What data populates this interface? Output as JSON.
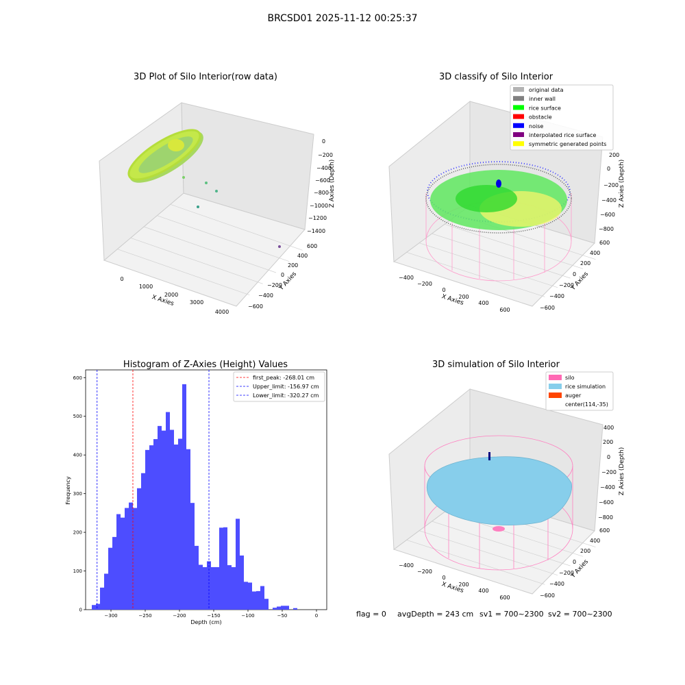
{
  "figure": {
    "suptitle": "BRCSD01 2025-11-12 00:25:37",
    "footer": {
      "flag": "flag = 0",
      "avg_depth": "avgDepth = 243 cm",
      "sv1": "sv1 = 700~2300",
      "sv2": "sv2 = 700~2300"
    }
  },
  "colors": {
    "hist_bar": "#4d4dff",
    "first_peak": "#ff0000",
    "limits": "#0000ff",
    "original": "#b3b3b3",
    "inner_wall": "#808080",
    "rice_surface": "#00ff00",
    "obstacle": "#ff0000",
    "noise": "#0000ff",
    "interpolated": "#800080",
    "symmetric": "#ffff00",
    "silo": "#ff69b4",
    "rice_sim": "#87ceeb",
    "auger": "#ff4500"
  },
  "chart_data": [
    {
      "type": "scatter",
      "subtype": "3d",
      "title": "3D Plot of Silo Interior(row data)",
      "xlabel": "X Axies",
      "ylabel": "Y Axies",
      "zlabel": "Z Axies (Depth)",
      "xticks": [
        "0",
        "1000",
        "2000",
        "3000",
        "4000"
      ],
      "yticks": [
        "600",
        "400",
        "200",
        "0",
        "−200",
        "−400",
        "−600"
      ],
      "zticks": [
        "0",
        "−200",
        "−400",
        "−600",
        "−800",
        "−1000",
        "−1200",
        "−1400"
      ],
      "grid": true
    },
    {
      "type": "scatter",
      "subtype": "3d",
      "title": "3D classify of Silo Interior",
      "zlabel": "Z Axies (Depth)",
      "xlabel": "X Axies",
      "ylabel": "Y Axies",
      "xticks": [
        "−400",
        "−200",
        "0",
        "200",
        "400",
        "600"
      ],
      "yticks": [
        "600",
        "400",
        "200",
        "0",
        "−200",
        "−400",
        "−600"
      ],
      "zticks": [
        "200",
        "0",
        "−200",
        "−400",
        "−600",
        "−800"
      ],
      "legend": [
        "original data",
        "inner wall",
        "rice surface",
        "obstacle",
        "noise",
        "interpolated rice surface",
        "symmetric generated points"
      ],
      "legend_placement": "top-right",
      "grid": true
    },
    {
      "type": "bar",
      "subtype": "histogram",
      "title": "Histogram of Z-Axies (Height) Values",
      "xlabel": "Depth (cm)",
      "ylabel": "Frequency",
      "xlim": [
        -337,
        15
      ],
      "ylim": [
        0,
        620
      ],
      "xticks": [
        -300,
        -250,
        -200,
        -150,
        -100,
        -50,
        0
      ],
      "xtick_labels": [
        "−300",
        "−250",
        "−200",
        "−150",
        "−100",
        "−50",
        "0"
      ],
      "yticks": [
        0,
        100,
        200,
        300,
        400,
        500,
        600
      ],
      "bin_edges": [
        -328,
        -322,
        -316,
        -310,
        -304,
        -298,
        -292,
        -286,
        -280,
        -274,
        -268,
        -262,
        -256,
        -250,
        -244,
        -238,
        -232,
        -226,
        -220,
        -214,
        -208,
        -202,
        -196,
        -190,
        -184,
        -178,
        -172,
        -166,
        -160,
        -154,
        -148,
        -142,
        -136,
        -130,
        -124,
        -118,
        -112,
        -106,
        -100,
        -94,
        -88,
        -82,
        -76,
        -70,
        -64,
        -58,
        -52,
        -46,
        -40,
        -34,
        -28,
        -22,
        -16,
        -10,
        -4,
        2
      ],
      "values": [
        12,
        15,
        57,
        93,
        160,
        188,
        247,
        238,
        263,
        277,
        263,
        314,
        353,
        413,
        425,
        441,
        475,
        463,
        511,
        465,
        427,
        442,
        583,
        415,
        276,
        165,
        116,
        110,
        125,
        110,
        110,
        212,
        213,
        115,
        110,
        235,
        140,
        72,
        70,
        47,
        48,
        61,
        28,
        0,
        5,
        8,
        10,
        10,
        0,
        4,
        0,
        0,
        0,
        0,
        0
      ],
      "vlines": [
        {
          "name": "first_peak: -268.01 cm",
          "x": -268.01,
          "color": "#ff0000"
        },
        {
          "name": "Upper_limit: -156.97 cm",
          "x": -156.97,
          "color": "#0000ff"
        },
        {
          "name": "Lower_limit: -320.27 cm",
          "x": -320.27,
          "color": "#0000ff"
        }
      ],
      "legend_placement": "top-right"
    },
    {
      "type": "scatter",
      "subtype": "3d-surface",
      "title": "3D simulation of Silo Interior",
      "zlabel": "Z Axies (Depth)",
      "xlabel": "X Axies",
      "ylabel": "Y Axies",
      "xticks": [
        "−400",
        "−200",
        "0",
        "200",
        "400",
        "600"
      ],
      "yticks": [
        "600",
        "400",
        "200",
        "0",
        "−200",
        "−400",
        "−600"
      ],
      "zticks": [
        "400",
        "200",
        "0",
        "−200",
        "−400",
        "−600",
        "−800"
      ],
      "legend": [
        "silo",
        "rice simulation",
        "auger",
        "center(114,-35)"
      ],
      "legend_placement": "top-right",
      "grid": true
    }
  ]
}
